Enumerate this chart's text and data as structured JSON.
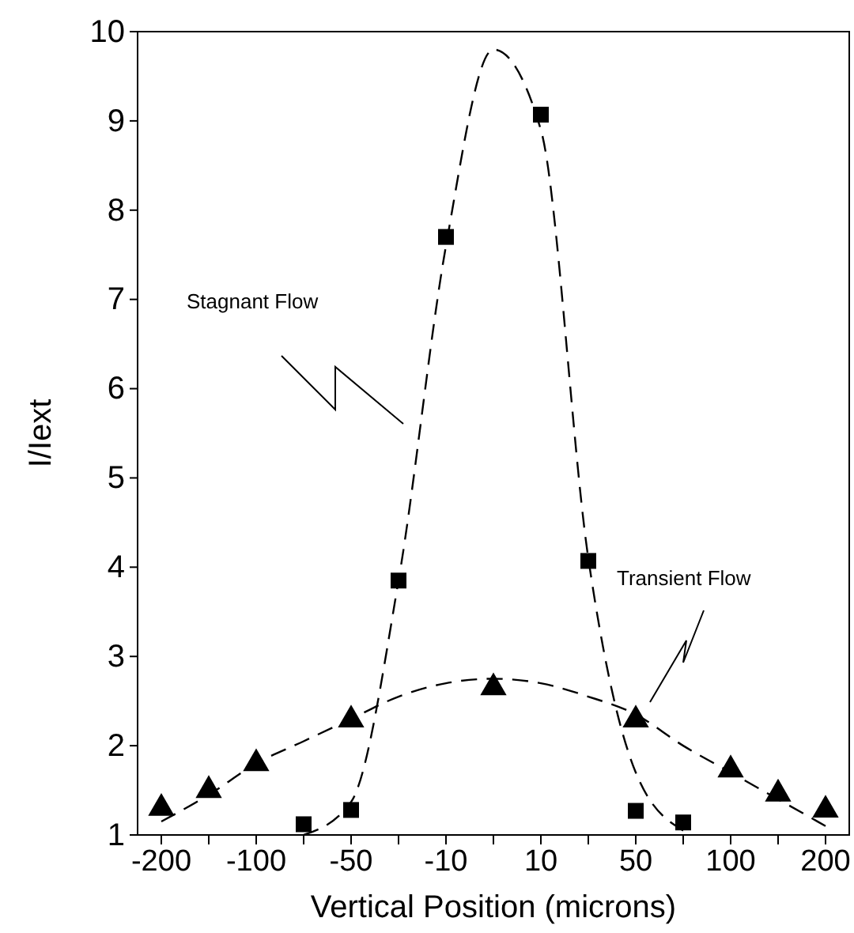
{
  "chart_data": {
    "type": "scatter",
    "xlabel": "Vertical Position (microns)",
    "ylabel": "I/Iext",
    "categories": [
      "-200",
      null,
      "-100",
      null,
      "-50",
      null,
      "-10",
      null,
      "10",
      null,
      "50",
      null,
      "100",
      null,
      "200"
    ],
    "ylim": [
      1,
      10
    ],
    "yticks": [
      1,
      2,
      3,
      4,
      5,
      6,
      7,
      8,
      9,
      10
    ],
    "grid": false,
    "series": [
      {
        "marker": "square",
        "color": "#000000",
        "values": [
          null,
          null,
          null,
          1.12,
          1.28,
          3.85,
          7.7,
          null,
          9.07,
          4.07,
          1.27,
          1.14,
          null,
          null,
          null
        ]
      },
      {
        "marker": "triangle",
        "color": "#000000",
        "values": [
          1.3,
          1.5,
          1.8,
          null,
          2.29,
          null,
          null,
          2.65,
          null,
          null,
          2.29,
          null,
          1.73,
          1.46,
          1.28
        ]
      },
      {
        "type": "line",
        "marker": "none",
        "line_style": "dashed",
        "color": "#000000",
        "values": [
          null,
          null,
          null,
          1.0,
          1.37,
          3.85,
          7.6,
          9.8,
          8.9,
          4.1,
          1.7,
          1.05,
          null,
          null,
          null
        ]
      },
      {
        "type": "line",
        "marker": "none",
        "line_style": "dashed",
        "color": "#000000",
        "values": [
          1.15,
          1.45,
          1.8,
          2.05,
          2.3,
          2.55,
          2.7,
          2.75,
          2.7,
          2.55,
          2.35,
          2.0,
          1.7,
          1.4,
          1.1
        ]
      }
    ],
    "annotations": [
      "Stagnant Flow",
      "Transient Flow"
    ]
  }
}
